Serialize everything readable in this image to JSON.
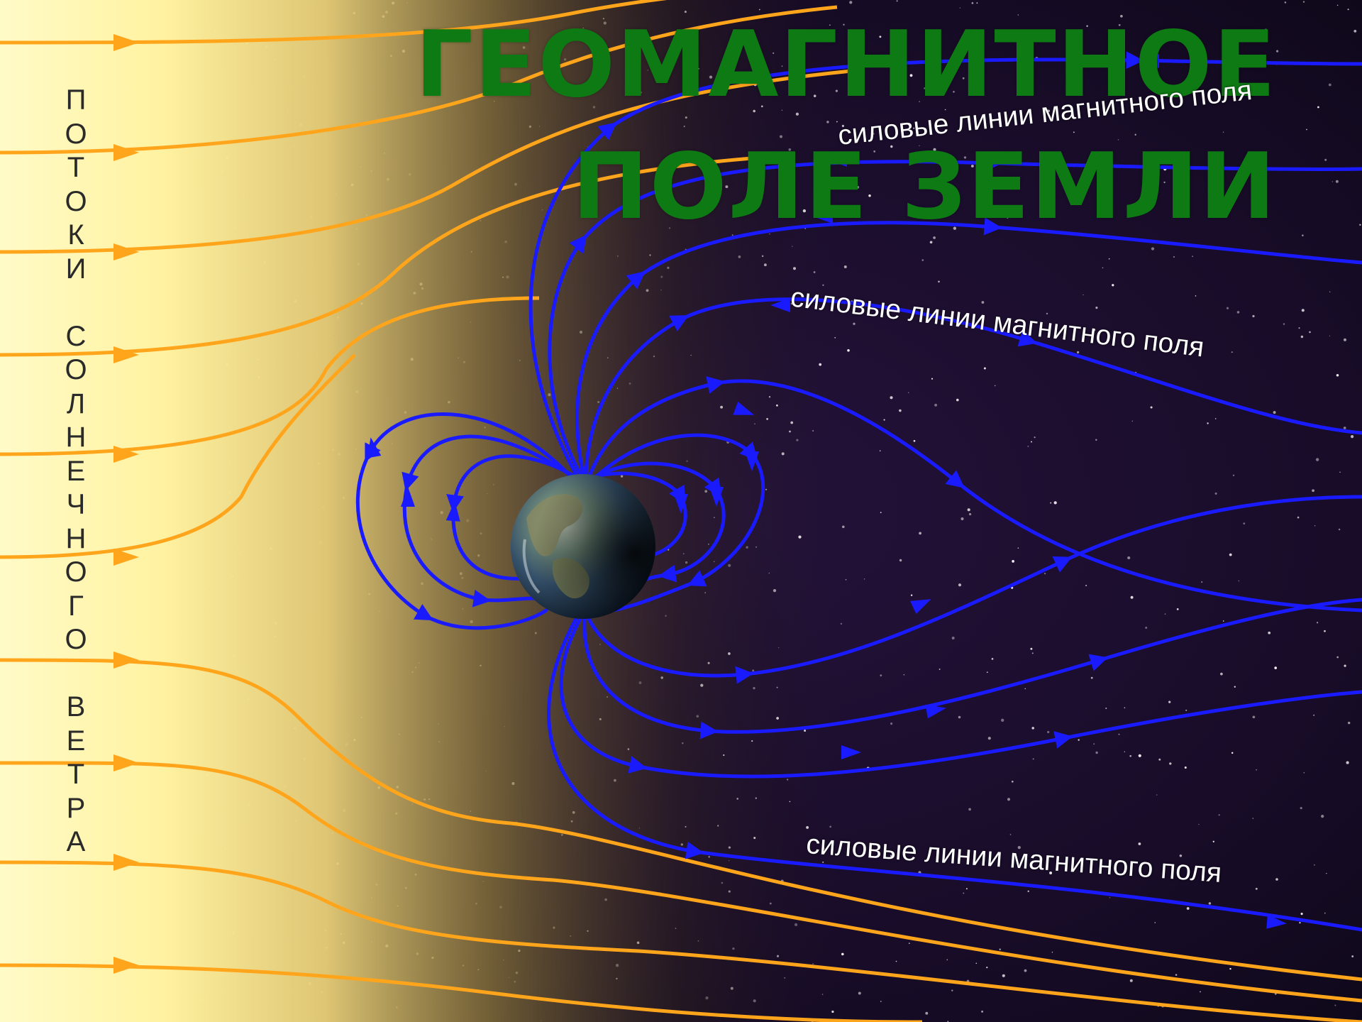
{
  "title": {
    "line1": "ГЕОМАГНИТНОЕ",
    "line2": "ПОЛЕ ЗЕМЛИ"
  },
  "labels": {
    "field_lines": [
      "силовые линии магнитного поля",
      "силовые линии магнитного поля",
      "силовые линии магнитного поля"
    ],
    "solar_wind": "ПОТОКИ СОЛНЕЧНОГО ВЕТРА"
  },
  "nodes": {
    "earth": {
      "name": "earth-globe"
    },
    "sun": {
      "name": "sun-glow"
    }
  },
  "colors": {
    "title": "#0e7a14",
    "field_lines": "#1a1aff",
    "solar_wind": "#ffa51c",
    "space": "#1b0f2a",
    "sun": "#fff7a8"
  }
}
